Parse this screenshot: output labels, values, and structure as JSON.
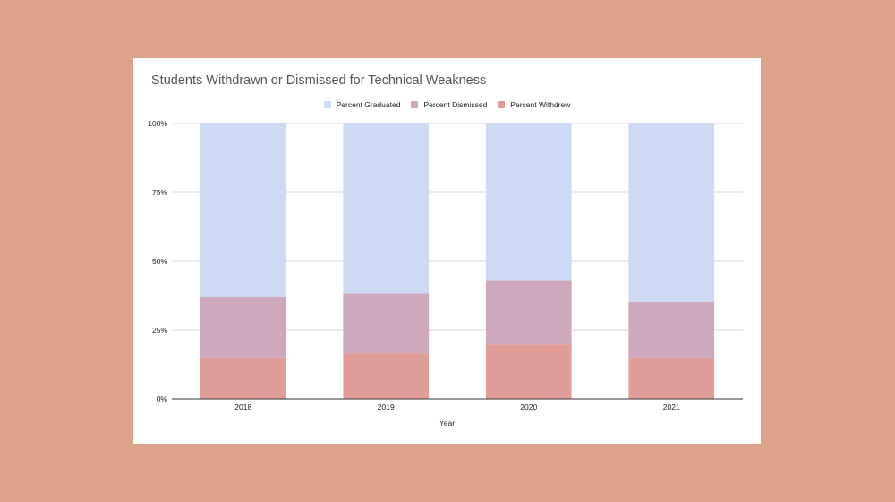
{
  "chart_data": {
    "type": "bar",
    "stacked": true,
    "title": "Students Withdrawn or Dismissed for Technical Weakness",
    "xlabel": "Year",
    "ylabel": "",
    "categories": [
      "2018",
      "2019",
      "2020",
      "2021"
    ],
    "ylim": [
      0,
      100
    ],
    "yticks": [
      "0%",
      "25%",
      "50%",
      "75%",
      "100%"
    ],
    "ytick_values": [
      0,
      25,
      50,
      75,
      100
    ],
    "legend_position": "top",
    "grid": true,
    "series": [
      {
        "name": "Percent Withdrew",
        "color": "#e09c97",
        "values": [
          15,
          16.5,
          20,
          15
        ]
      },
      {
        "name": "Percent Dismissed",
        "color": "#cea8bd",
        "values": [
          22,
          22,
          23,
          20.5
        ]
      },
      {
        "name": "Percent Graduated",
        "color": "#cddaf3",
        "values": [
          63,
          61.5,
          57,
          64.5
        ]
      }
    ],
    "legend_order": [
      "Percent Graduated",
      "Percent Dismissed",
      "Percent Withdrew"
    ]
  }
}
